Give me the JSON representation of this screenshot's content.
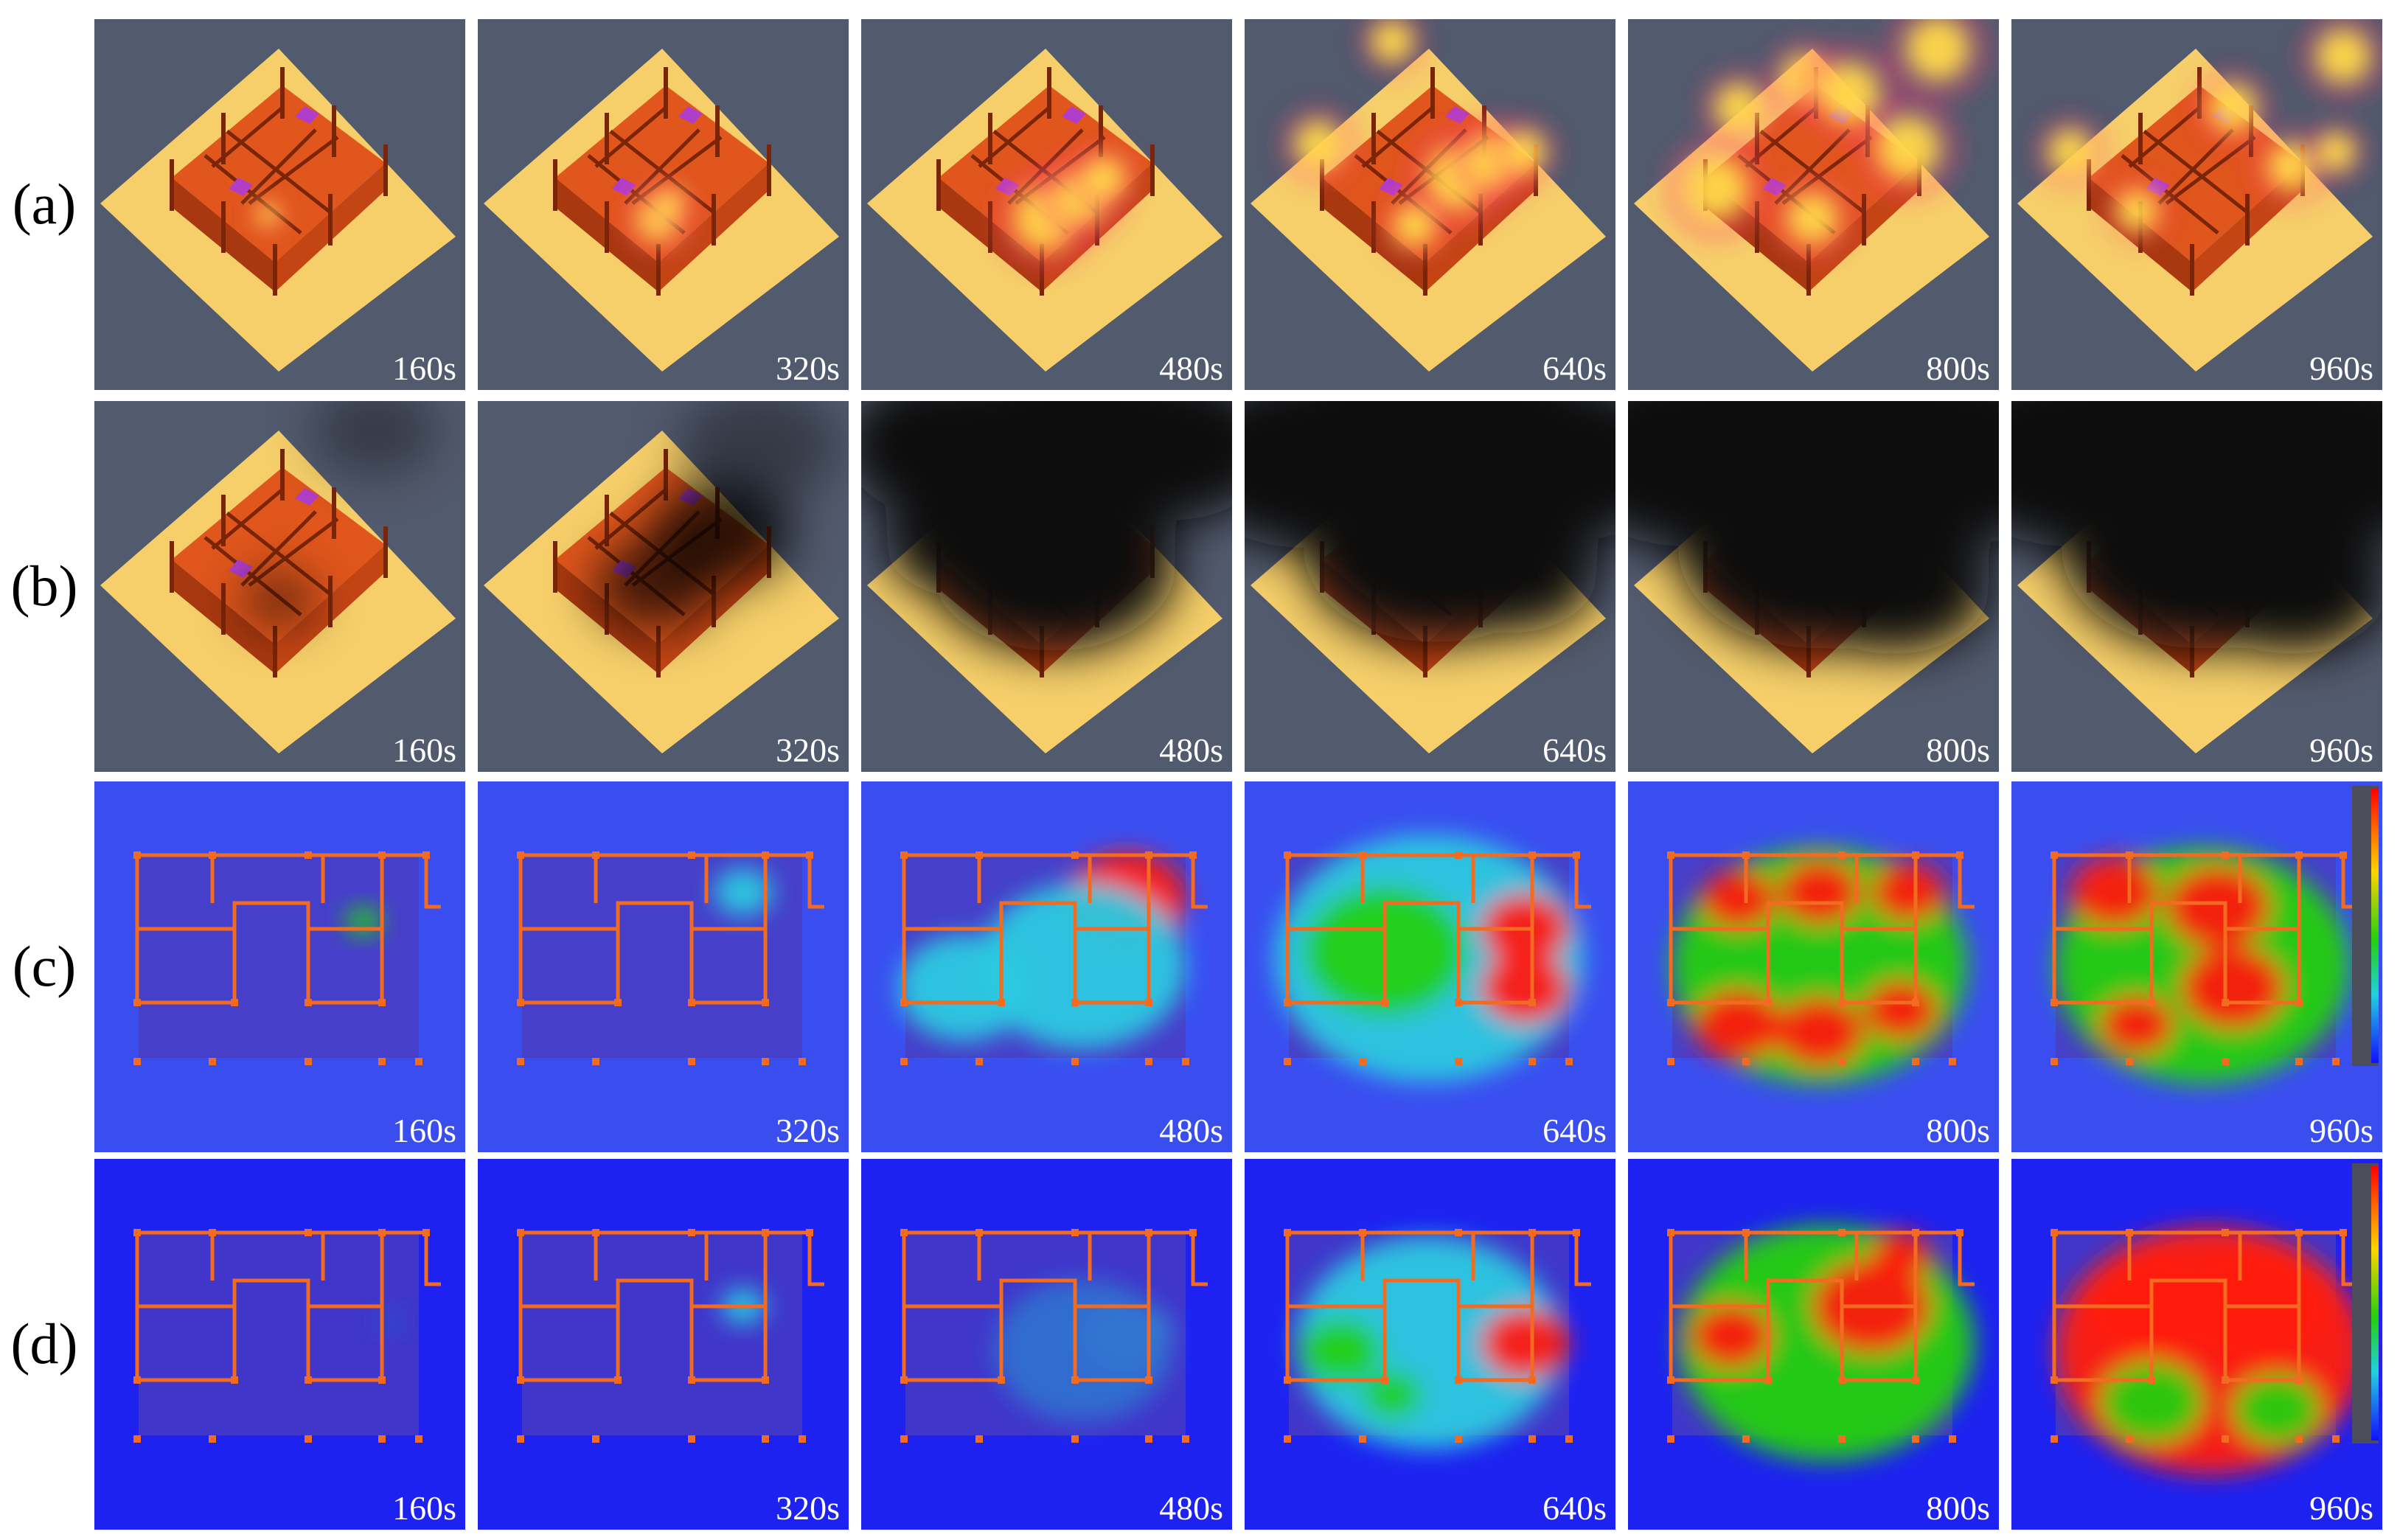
{
  "rows": [
    {
      "label": "(a)",
      "kind": "fire"
    },
    {
      "label": "(b)",
      "kind": "smoke"
    },
    {
      "label": "(c)",
      "kind": "temperature"
    },
    {
      "label": "(d)",
      "kind": "concentration"
    }
  ],
  "times": [
    "160s",
    "320s",
    "480s",
    "640s",
    "800s",
    "960s"
  ],
  "colors": {
    "scene_bg": "#525a6d",
    "ground": "#f6cf6a",
    "building": "#e0561c",
    "furniture": "#b13ec8",
    "map_bg_c": "#3a4ef0",
    "map_bg_d": "#1d22f0",
    "hot": "#ff1a10",
    "warm": "#22d010",
    "cool": "#2bc9e0"
  }
}
